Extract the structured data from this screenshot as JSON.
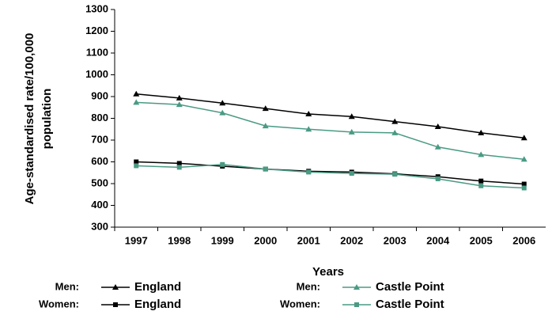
{
  "chart_data": {
    "type": "line",
    "ylabel": [
      "Age-standardised rate/100,000",
      "population"
    ],
    "xlabel": "Years",
    "categories": [
      "1997",
      "1998",
      "1999",
      "2000",
      "2001",
      "2002",
      "2003",
      "2004",
      "2005",
      "2006"
    ],
    "ylim": [
      300,
      1300
    ],
    "yticks": [
      300,
      400,
      500,
      600,
      700,
      800,
      900,
      1000,
      1100,
      1200,
      1300
    ],
    "series": [
      {
        "group": "Men:",
        "name": "England",
        "color": "#000000",
        "marker": "triangle",
        "values": [
          912,
          893,
          870,
          845,
          820,
          808,
          785,
          762,
          733,
          710
        ]
      },
      {
        "group": "Women:",
        "name": "England",
        "color": "#000000",
        "marker": "square",
        "values": [
          600,
          593,
          580,
          567,
          557,
          553,
          545,
          532,
          512,
          498
        ]
      },
      {
        "group": "Men:",
        "name": "Castle Point",
        "color": "#4a9a84",
        "marker": "triangle",
        "values": [
          873,
          863,
          825,
          765,
          750,
          737,
          733,
          668,
          633,
          612
        ]
      },
      {
        "group": "Women:",
        "name": "Castle Point",
        "color": "#4a9a84",
        "marker": "square",
        "values": [
          582,
          575,
          588,
          567,
          553,
          547,
          543,
          522,
          490,
          480
        ]
      }
    ]
  }
}
